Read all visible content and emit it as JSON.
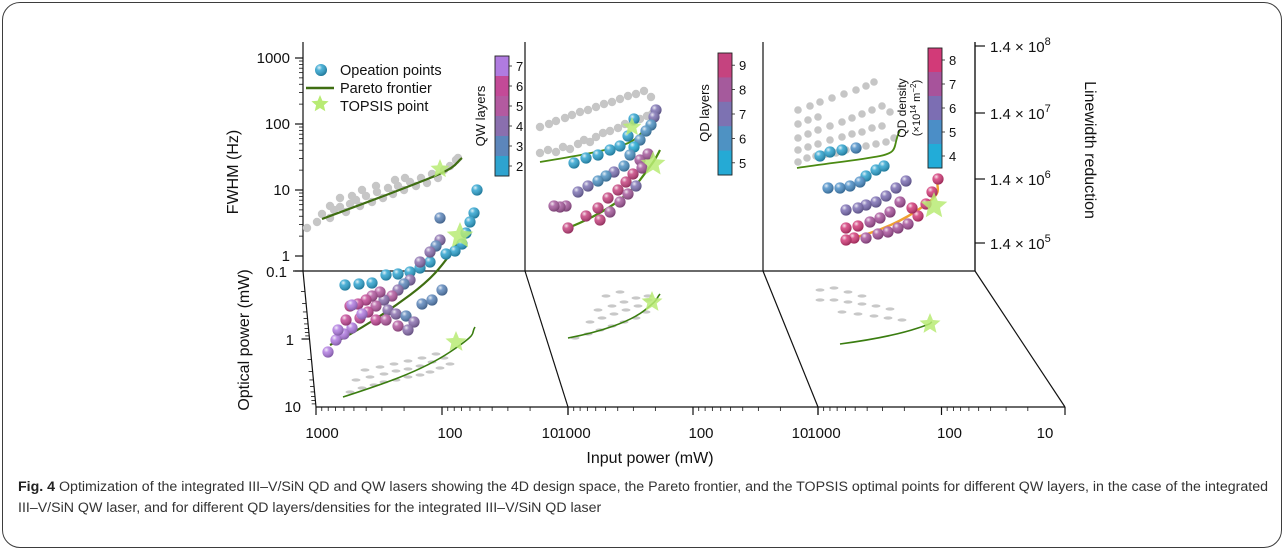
{
  "caption": {
    "label": "Fig. 4",
    "text": "Optimization of the integrated III–V/SiN QD and QW lasers showing the 4D design space, the Pareto frontier, and the TOPSIS optimal points for different QW layers, in the case of the integrated III–V/SiN QW laser, and for different QD layers/densities for the integrated III–V/SiN QD laser"
  },
  "chart_data": {
    "type": "scatter",
    "x_axis": {
      "label": "Input power (mW)",
      "scale": "log",
      "reversed": true,
      "ticks": [
        "1000",
        "100",
        "10"
      ],
      "panels": 3
    },
    "y_axis_top": {
      "label": "FWHM (Hz)",
      "scale": "log",
      "ticks": [
        "1000",
        "100",
        "10",
        "1"
      ],
      "range": [
        1,
        1000
      ]
    },
    "y_axis_floor": {
      "label": "Optical power (mW)",
      "scale": "log",
      "ticks": [
        "0.1",
        "1",
        "10"
      ]
    },
    "y_axis_right": {
      "label": "Linewidth reduction",
      "ticks": [
        {
          "mant": "1.4 × 10",
          "exp": "8"
        },
        {
          "mant": "1.4 × 10",
          "exp": "7"
        },
        {
          "mant": "1.4 × 10",
          "exp": "6"
        },
        {
          "mant": "1.4 × 10",
          "exp": "5"
        }
      ]
    },
    "legend": {
      "position": "top-left",
      "entries": [
        "Opeation points",
        "Pareto frontier",
        "TOPSIS point"
      ]
    },
    "colorbars": [
      {
        "title": "QW layers",
        "ticks": [
          "7",
          "6",
          "5",
          "4",
          "3",
          "2"
        ],
        "colors": [
          "#b07be0",
          "#c34a97",
          "#b35aa0",
          "#8a6fae",
          "#5c86bb",
          "#2ea3cf"
        ]
      },
      {
        "title": "QD layers",
        "ticks": [
          "9",
          "8",
          "7",
          "6",
          "5"
        ],
        "colors": [
          "#c5437f",
          "#a55a9c",
          "#7d72b2",
          "#4e92c3",
          "#25aad5"
        ]
      },
      {
        "title": "QD density",
        "title2": "(×10",
        "title2_exp": "14",
        "title2_unit": " m",
        "title2_unit_exp": "−2",
        "title2_close": ")",
        "ticks": [
          "8",
          "7",
          "6",
          "5",
          "4"
        ],
        "colors": [
          "#d23a78",
          "#a7539b",
          "#7c6eb3",
          "#4b8ec7",
          "#22acd8"
        ]
      }
    ],
    "panels": [
      {
        "name": "QW laser",
        "gray_points": [
          [
            900,
            3
          ],
          [
            800,
            3.6
          ],
          [
            700,
            4
          ],
          [
            600,
            4.3
          ],
          [
            550,
            5
          ],
          [
            500,
            6
          ],
          [
            450,
            5.5
          ],
          [
            400,
            7
          ],
          [
            380,
            6
          ],
          [
            350,
            8
          ],
          [
            320,
            7
          ],
          [
            300,
            9
          ],
          [
            280,
            8.5
          ],
          [
            250,
            10
          ],
          [
            230,
            9
          ],
          [
            200,
            12
          ],
          [
            180,
            11
          ],
          [
            160,
            13
          ],
          [
            150,
            15
          ],
          [
            130,
            17
          ],
          [
            120,
            19
          ],
          [
            110,
            22
          ],
          [
            100,
            26
          ],
          [
            90,
            30
          ],
          [
            85,
            22
          ],
          [
            75,
            35
          ],
          [
            480,
            8
          ],
          [
            420,
            9
          ],
          [
            260,
            7.5
          ],
          [
            340,
            10
          ]
        ],
        "frontier": [
          [
            850,
            3.5
          ],
          [
            600,
            4.5
          ],
          [
            400,
            6
          ],
          [
            300,
            7.5
          ],
          [
            200,
            10
          ],
          [
            140,
            14
          ],
          [
            100,
            20
          ],
          [
            75,
            30
          ]
        ],
        "topsis": [
          90,
          22
        ],
        "colored_points": [
          {
            "x": 50,
            "y": 11,
            "c": 2
          },
          {
            "x": 58,
            "y": 5,
            "c": 2
          },
          {
            "x": 62,
            "y": 3.5,
            "c": 2
          },
          {
            "x": 70,
            "y": 2.3,
            "c": 2
          },
          {
            "x": 80,
            "y": 1.8,
            "c": 3
          },
          {
            "x": 95,
            "y": 1.5,
            "c": 3
          },
          {
            "x": 115,
            "y": 1.1,
            "c": 3
          },
          {
            "x": 140,
            "y": 0.75,
            "c": 2
          }
        ]
      }
    ]
  }
}
